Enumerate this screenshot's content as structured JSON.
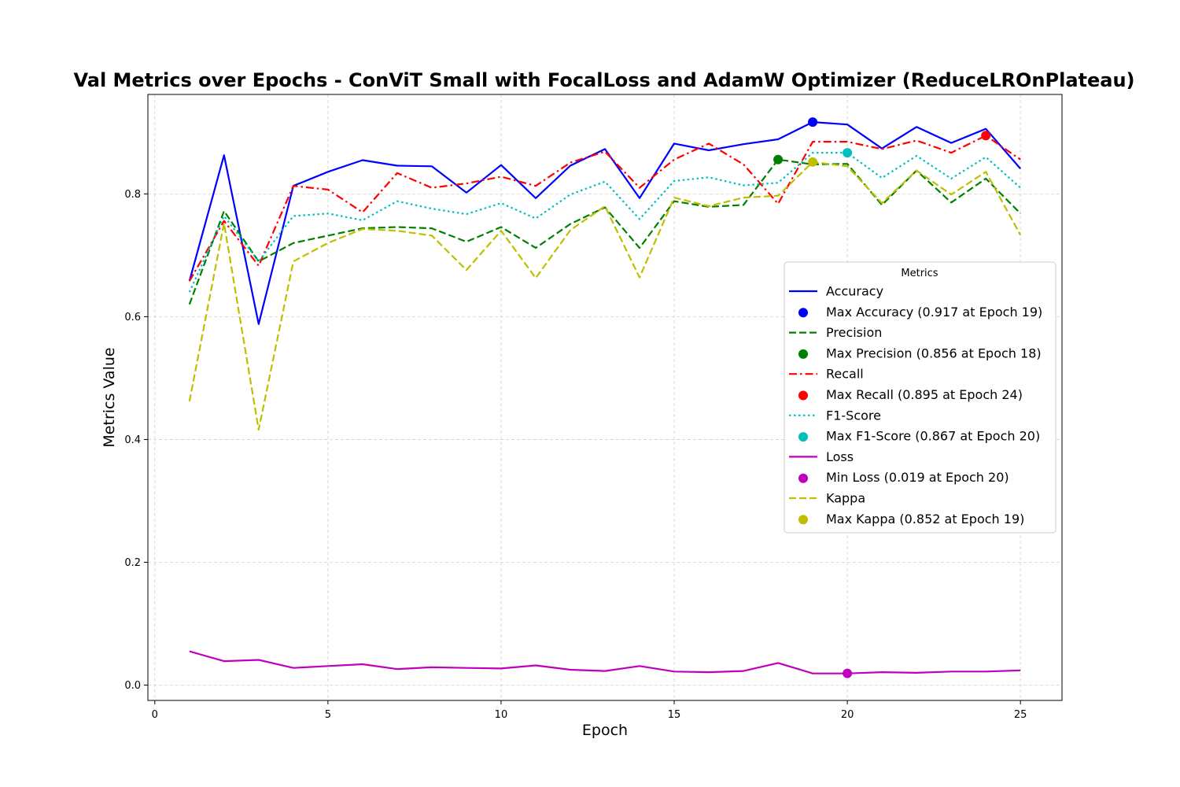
{
  "chart_data": {
    "type": "line",
    "title": "Val Metrics over Epochs - ConViT Small with FocalLoss and AdamW Optimizer (ReduceLROnPlateau)",
    "xlabel": "Epoch",
    "ylabel": "Metrics Value",
    "xlim": [
      -0.2,
      26.2
    ],
    "ylim": [
      -0.025,
      0.962
    ],
    "xticks": [
      0,
      5,
      10,
      15,
      20,
      25
    ],
    "yticks": [
      0.0,
      0.2,
      0.4,
      0.6,
      0.8
    ],
    "ytick_labels": [
      "0.0",
      "0.2",
      "0.4",
      "0.6",
      "0.8"
    ],
    "grid": true,
    "legend_title": "Metrics",
    "legend_placement": "center-right",
    "x": [
      1,
      2,
      3,
      4,
      5,
      6,
      7,
      8,
      9,
      10,
      11,
      12,
      13,
      14,
      15,
      16,
      17,
      18,
      19,
      20,
      21,
      22,
      23,
      24,
      25
    ],
    "series": [
      {
        "name": "Accuracy",
        "color": "#0000ff",
        "style": "solid",
        "values": [
          0.658,
          0.863,
          0.588,
          0.813,
          0.836,
          0.855,
          0.846,
          0.845,
          0.802,
          0.847,
          0.793,
          0.846,
          0.873,
          0.793,
          0.882,
          0.871,
          0.881,
          0.889,
          0.917,
          0.913,
          0.874,
          0.909,
          0.883,
          0.906,
          0.841
        ],
        "marker": {
          "label": "Max Accuracy (0.917 at Epoch 19)",
          "x": 19,
          "y": 0.917
        }
      },
      {
        "name": "Precision",
        "color": "#008000",
        "style": "dashed",
        "values": [
          0.62,
          0.772,
          0.69,
          0.72,
          0.732,
          0.744,
          0.746,
          0.744,
          0.722,
          0.746,
          0.712,
          0.751,
          0.778,
          0.712,
          0.788,
          0.779,
          0.782,
          0.856,
          0.848,
          0.849,
          0.782,
          0.838,
          0.786,
          0.825,
          0.768
        ],
        "marker": {
          "label": "Max Precision (0.856 at Epoch 18)",
          "x": 18,
          "y": 0.856
        }
      },
      {
        "name": "Recall",
        "color": "#ff0000",
        "style": "dashdot",
        "values": [
          0.658,
          0.756,
          0.683,
          0.813,
          0.807,
          0.77,
          0.834,
          0.81,
          0.817,
          0.828,
          0.813,
          0.851,
          0.869,
          0.81,
          0.856,
          0.882,
          0.848,
          0.784,
          0.885,
          0.885,
          0.873,
          0.887,
          0.867,
          0.895,
          0.856
        ],
        "marker": {
          "label": "Max Recall (0.895 at Epoch 24)",
          "x": 24,
          "y": 0.895
        }
      },
      {
        "name": "F1-Score",
        "color": "#00bfbf",
        "style": "dotted",
        "values": [
          0.64,
          0.764,
          0.69,
          0.764,
          0.768,
          0.757,
          0.788,
          0.776,
          0.767,
          0.785,
          0.76,
          0.799,
          0.82,
          0.759,
          0.821,
          0.827,
          0.814,
          0.818,
          0.867,
          0.867,
          0.826,
          0.862,
          0.825,
          0.86,
          0.81
        ],
        "marker": {
          "label": "Max F1-Score (0.867 at Epoch 20)",
          "x": 20,
          "y": 0.867
        }
      },
      {
        "name": "Loss",
        "color": "#bf00bf",
        "style": "solid",
        "values": [
          0.055,
          0.039,
          0.041,
          0.028,
          0.031,
          0.034,
          0.026,
          0.029,
          0.028,
          0.027,
          0.032,
          0.025,
          0.023,
          0.031,
          0.022,
          0.021,
          0.023,
          0.036,
          0.019,
          0.019,
          0.021,
          0.02,
          0.022,
          0.022,
          0.024
        ],
        "marker": {
          "label": "Min Loss (0.019 at Epoch 20)",
          "x": 20,
          "y": 0.019
        }
      },
      {
        "name": "Kappa",
        "color": "#bfbf00",
        "style": "dashed",
        "values": [
          0.462,
          0.752,
          0.416,
          0.69,
          0.72,
          0.743,
          0.74,
          0.732,
          0.676,
          0.74,
          0.663,
          0.741,
          0.78,
          0.664,
          0.794,
          0.78,
          0.794,
          0.797,
          0.852,
          0.845,
          0.785,
          0.838,
          0.799,
          0.836,
          0.733
        ],
        "marker": {
          "label": "Max Kappa (0.852 at Epoch 19)",
          "x": 19,
          "y": 0.852
        }
      }
    ]
  }
}
